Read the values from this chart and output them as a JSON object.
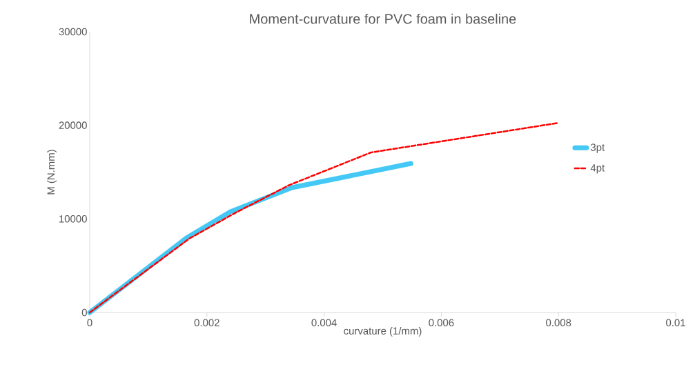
{
  "chart_data": {
    "type": "line",
    "title": "Moment-curvature for PVC foam in baseline",
    "xlabel": "curvature (1/mm)",
    "ylabel": "M (N.mm)",
    "xlim": [
      0,
      0.01
    ],
    "ylim": [
      0,
      30000
    ],
    "xticks": [
      {
        "value": 0,
        "label": "0"
      },
      {
        "value": 0.002,
        "label": "0.002"
      },
      {
        "value": 0.004,
        "label": "0.004"
      },
      {
        "value": 0.006,
        "label": "0.006"
      },
      {
        "value": 0.008,
        "label": "0.008"
      },
      {
        "value": 0.01,
        "label": "0.01"
      }
    ],
    "yticks": [
      0,
      10000,
      20000,
      30000
    ],
    "grid": false,
    "legend": "right",
    "series": [
      {
        "name": "3pt",
        "color": "#44c8f5",
        "line_style": "solid",
        "x": [
          0,
          0.00165,
          0.0024,
          0.00345,
          0.00548
        ],
        "values": [
          0,
          7960,
          10760,
          13340,
          15920
        ]
      },
      {
        "name": "4pt",
        "color": "#ff0000",
        "line_style": "dashed",
        "x": [
          0,
          0.0017,
          0.0025,
          0.0034,
          0.0048,
          0.008
        ],
        "values": [
          0,
          7900,
          10700,
          13600,
          17100,
          20260
        ]
      }
    ]
  }
}
